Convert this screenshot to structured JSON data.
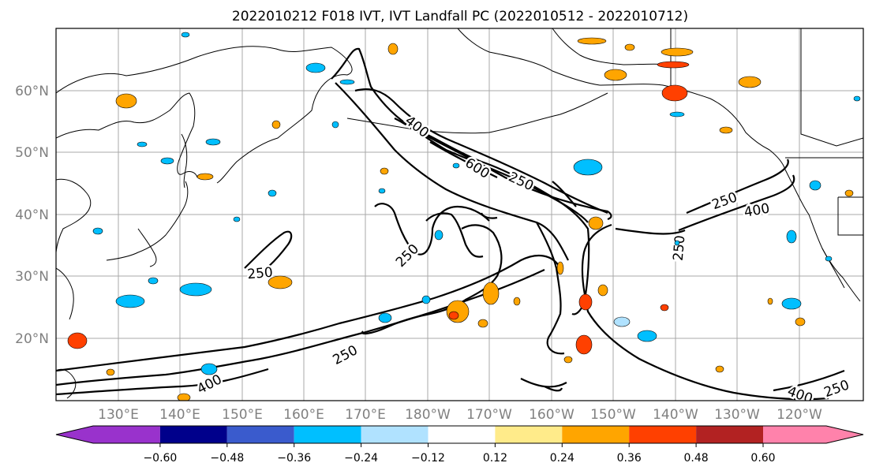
{
  "title": "2022010212 F018 IVT, IVT Landfall PC (2022010512 - 2022010712)",
  "lat_labels": [
    "60°N",
    "50°N",
    "40°N",
    "30°N",
    "20°N"
  ],
  "lon_labels": [
    "130°E",
    "140°E",
    "150°E",
    "160°E",
    "170°E",
    "180°W",
    "170°W",
    "160°W",
    "150°W",
    "140°W",
    "130°W",
    "120°W"
  ],
  "contour_labels": [
    "400",
    "600",
    "250",
    "250",
    "400",
    "250",
    "250",
    "250",
    "250",
    "400",
    "250",
    "400"
  ],
  "colorbar": {
    "colors": [
      "#9932cc",
      "#00008b",
      "#3a5bcd",
      "#00bfff",
      "#b0e2ff",
      "#ffffff",
      "#ffeb8a",
      "#ffa500",
      "#ff4000",
      "#b22222",
      "#ff82ab"
    ],
    "tick_labels": [
      "−0.60",
      "−0.48",
      "−0.36",
      "−0.24",
      "−0.12",
      "0.12",
      "0.24",
      "0.36",
      "0.48",
      "0.60"
    ]
  }
}
